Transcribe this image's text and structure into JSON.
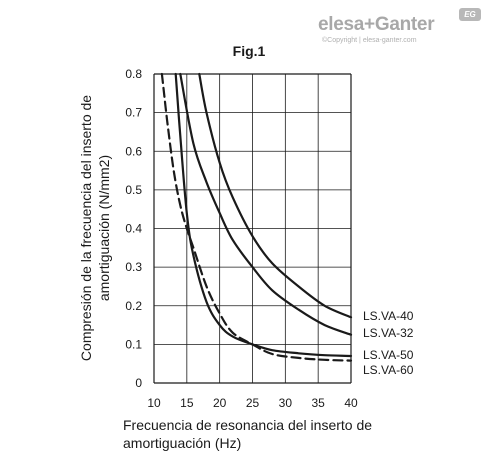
{
  "logo": {
    "text": "elesa+Ganter",
    "copyright": "©Copyright | elesa-ganter.com",
    "badge": "EG"
  },
  "chart_data": {
    "type": "line",
    "title": "Fig.1",
    "xlabel": "Frecuencia de resonancia del inserto de amortiguación (Hz)",
    "xlabel_lines": [
      "Frecuencia de resonancia del inserto de",
      "amortiguación (Hz)"
    ],
    "ylabel": "Compresión de la frecuencia del inserto de amortiguación (N/mm2)",
    "ylabel_lines": [
      "Compresión de la frecuencia del inserto de",
      "amortiguación (N/mm2)"
    ],
    "xlim": [
      10,
      40
    ],
    "ylim": [
      0,
      0.8
    ],
    "xticks": [
      "10",
      "15",
      "20",
      "25",
      "30",
      "35",
      "40"
    ],
    "yticks": [
      "0",
      "0.1",
      "0.2",
      "0.3",
      "0.4",
      "0.5",
      "0.6",
      "0.7",
      "0.8"
    ],
    "grid": true,
    "legend_placement": "right",
    "series": [
      {
        "name": "LS.VA-40",
        "style": "solid",
        "x": [
          16.9,
          18,
          20,
          22,
          25,
          28,
          32,
          36,
          40
        ],
        "y": [
          0.8,
          0.7,
          0.57,
          0.48,
          0.38,
          0.31,
          0.25,
          0.2,
          0.17
        ]
      },
      {
        "name": "LS.VA-32",
        "style": "solid",
        "x": [
          14,
          16,
          18,
          20,
          22,
          25,
          28,
          32,
          36,
          40
        ],
        "y": [
          0.8,
          0.62,
          0.52,
          0.44,
          0.37,
          0.3,
          0.24,
          0.19,
          0.15,
          0.125
        ]
      },
      {
        "name": "LS.VA-50",
        "style": "solid",
        "x": [
          13.3,
          14,
          15,
          16,
          18,
          20,
          22,
          25,
          28,
          32,
          36,
          40
        ],
        "y": [
          0.8,
          0.64,
          0.44,
          0.33,
          0.21,
          0.15,
          0.12,
          0.1,
          0.085,
          0.077,
          0.072,
          0.07
        ]
      },
      {
        "name": "LS.VA-60",
        "style": "dashed",
        "x": [
          11.2,
          12,
          13,
          14,
          15,
          16,
          18,
          20,
          22,
          25,
          28,
          32,
          36,
          40
        ],
        "y": [
          0.8,
          0.68,
          0.55,
          0.46,
          0.4,
          0.35,
          0.25,
          0.18,
          0.13,
          0.1,
          0.075,
          0.065,
          0.06,
          0.058
        ]
      }
    ],
    "colors": {
      "line": "#1a1a1a",
      "grid": "#1a1a1a"
    }
  }
}
